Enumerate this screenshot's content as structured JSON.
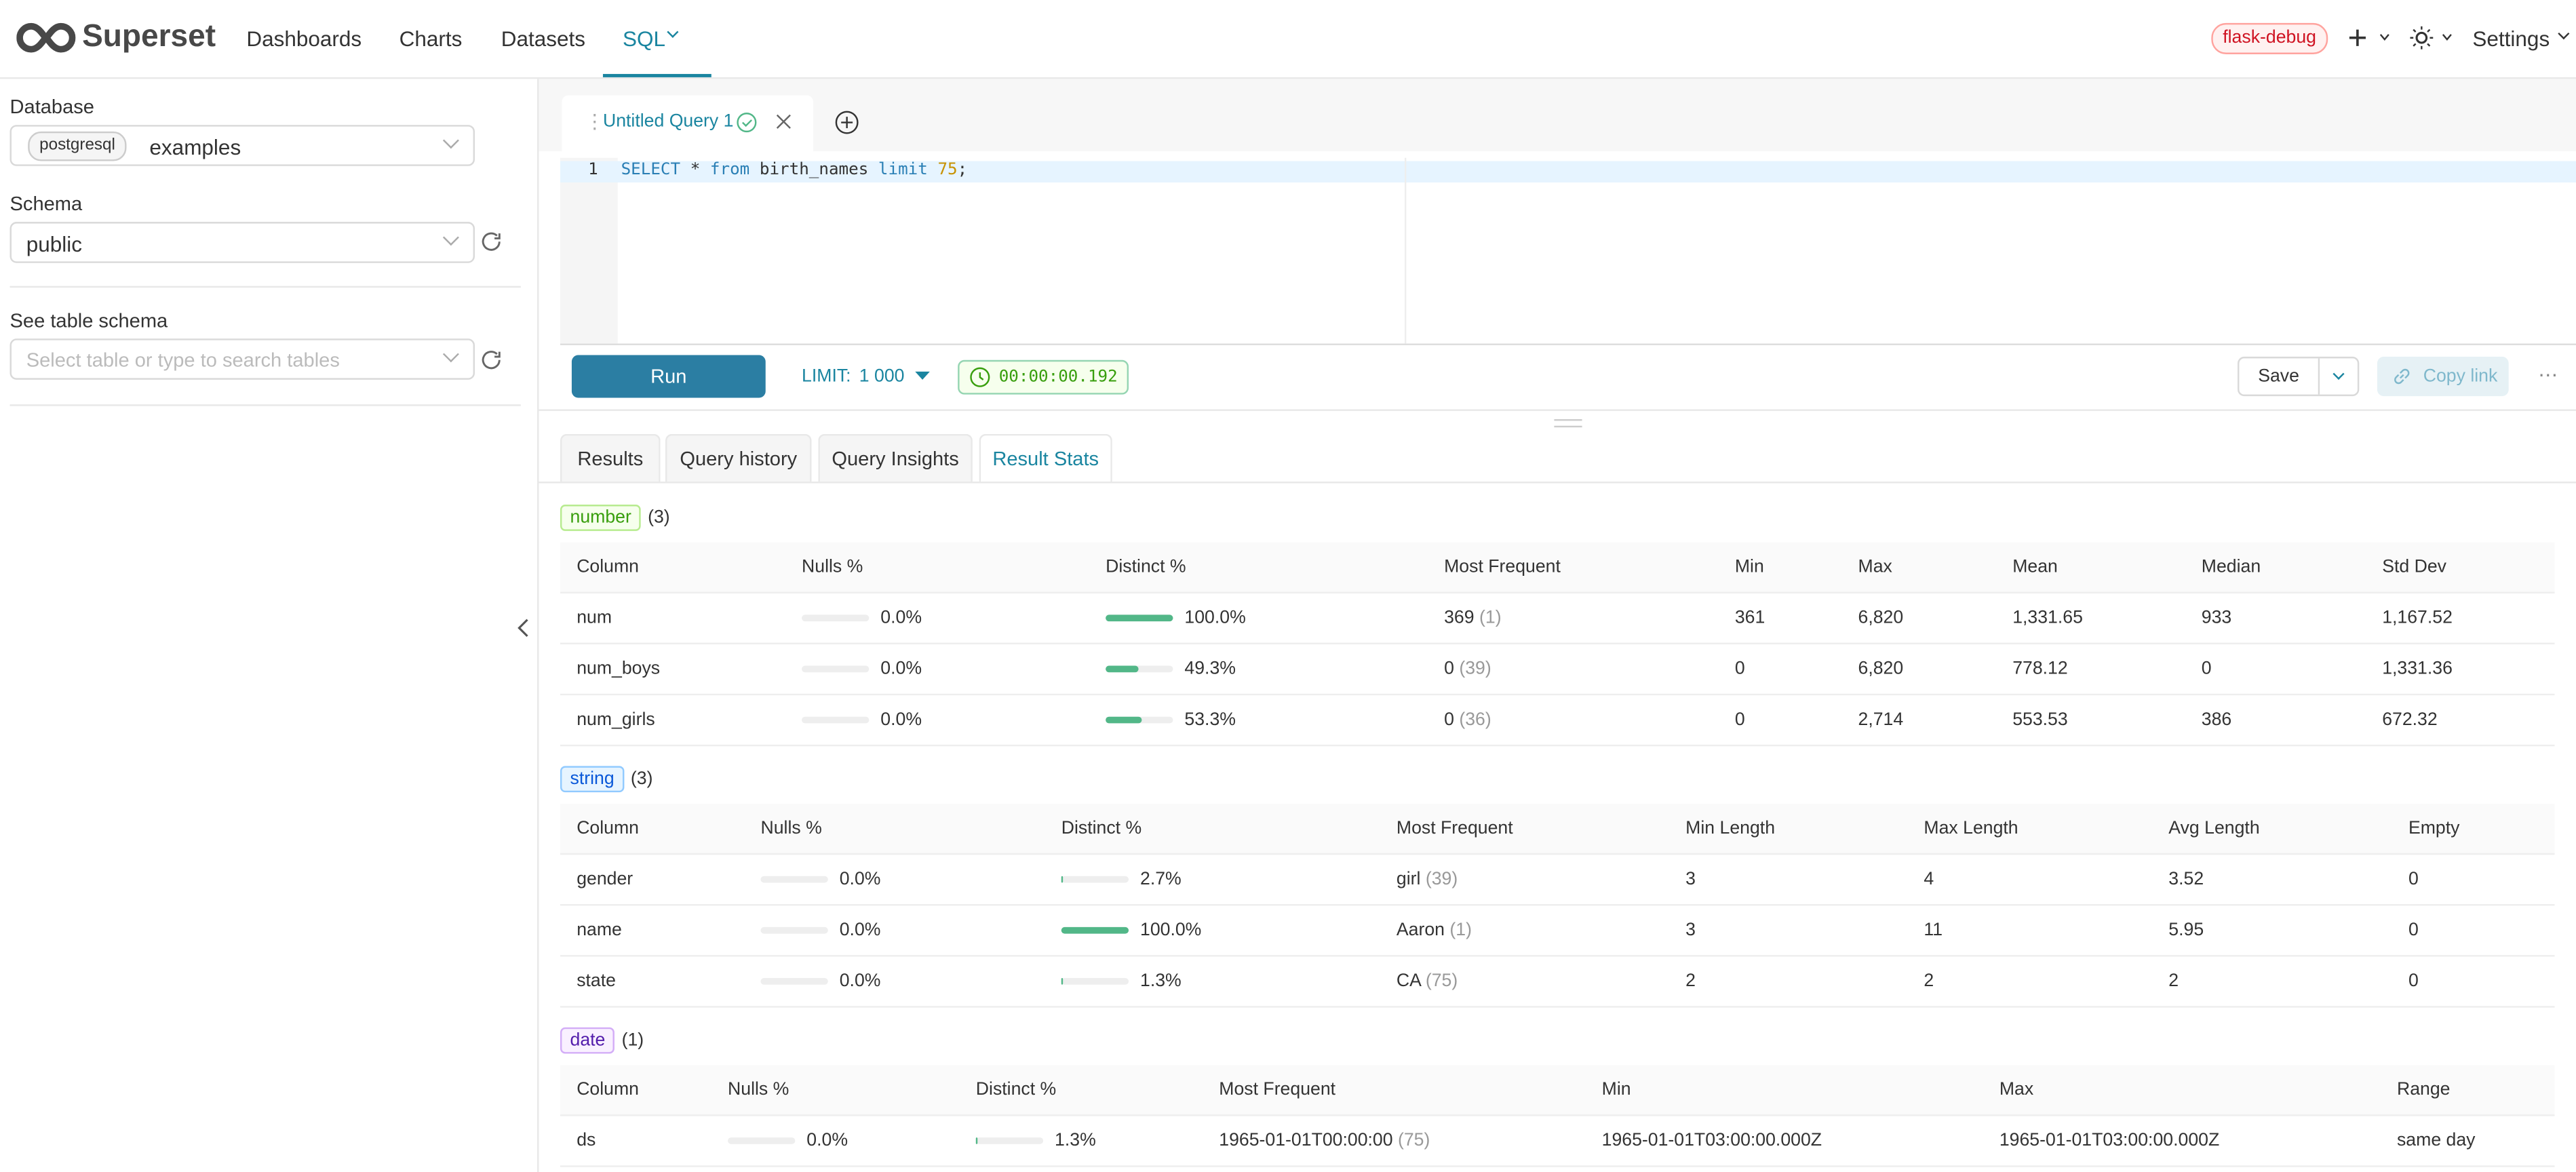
{
  "nav": {
    "brand": "Superset",
    "items": [
      "Dashboards",
      "Charts",
      "Datasets",
      "SQL"
    ],
    "env": "flask-debug",
    "settings": "Settings"
  },
  "sidebar": {
    "database_label": "Database",
    "database_engine": "postgresql",
    "database": "examples",
    "schema_label": "Schema",
    "schema": "public",
    "table_label": "See table schema",
    "table_placeholder": "Select table or type to search tables"
  },
  "editor": {
    "tab": "Untitled Query 1",
    "line_number": "1",
    "sql": [
      "SELECT",
      "*",
      "from",
      "birth_names",
      "limit",
      "75",
      ";"
    ]
  },
  "controls": {
    "run": "Run",
    "limit_label": "LIMIT:",
    "limit": "1 000",
    "timer": "00:00:00.192",
    "save": "Save",
    "copy_link": "Copy link"
  },
  "result_tabs": [
    "Results",
    "Query history",
    "Query Insights",
    "Result Stats"
  ],
  "sections": [
    {
      "tag": "number",
      "count": "(3)",
      "columns": [
        "Column",
        "Nulls %",
        "Distinct %",
        "Most Frequent",
        "Min",
        "Max",
        "Mean",
        "Median",
        "Std Dev"
      ],
      "rows": [
        [
          "num",
          {
            "value": 0,
            "label": "0.0%"
          },
          {
            "value": 100,
            "label": "100.0%"
          },
          {
            "text": "369",
            "count": "(1)"
          },
          "361",
          "6,820",
          "1,331.65",
          "933",
          "1,167.52"
        ],
        [
          "num_boys",
          {
            "value": 0,
            "label": "0.0%"
          },
          {
            "value": 49.3,
            "label": "49.3%"
          },
          {
            "text": "0",
            "count": "(39)"
          },
          "0",
          "6,820",
          "778.12",
          "0",
          "1,331.36"
        ],
        [
          "num_girls",
          {
            "value": 0,
            "label": "0.0%"
          },
          {
            "value": 53.3,
            "label": "53.3%"
          },
          {
            "text": "0",
            "count": "(36)"
          },
          "0",
          "2,714",
          "553.53",
          "386",
          "672.32"
        ]
      ]
    },
    {
      "tag": "string",
      "count": "(3)",
      "columns": [
        "Column",
        "Nulls %",
        "Distinct %",
        "Most Frequent",
        "Min Length",
        "Max Length",
        "Avg Length",
        "Empty"
      ],
      "rows": [
        [
          "gender",
          {
            "value": 0,
            "label": "0.0%"
          },
          {
            "value": 2.7,
            "label": "2.7%"
          },
          {
            "text": "girl",
            "count": "(39)"
          },
          "3",
          "4",
          "3.52",
          "0"
        ],
        [
          "name",
          {
            "value": 0,
            "label": "0.0%"
          },
          {
            "value": 100,
            "label": "100.0%"
          },
          {
            "text": "Aaron",
            "count": "(1)"
          },
          "3",
          "11",
          "5.95",
          "0"
        ],
        [
          "state",
          {
            "value": 0,
            "label": "0.0%"
          },
          {
            "value": 1.3,
            "label": "1.3%"
          },
          {
            "text": "CA",
            "count": "(75)"
          },
          "2",
          "2",
          "2",
          "0"
        ]
      ]
    },
    {
      "tag": "date",
      "count": "(1)",
      "columns": [
        "Column",
        "Nulls %",
        "Distinct %",
        "Most Frequent",
        "Min",
        "Max",
        "Range"
      ],
      "rows": [
        [
          "ds",
          {
            "value": 0,
            "label": "0.0%"
          },
          {
            "value": 1.3,
            "label": "1.3%"
          },
          {
            "text": "1965-01-01T00:00:00",
            "count": "(75)"
          },
          "1965-01-01T03:00:00.000Z",
          "1965-01-01T03:00:00.000Z",
          "same day"
        ]
      ]
    }
  ]
}
